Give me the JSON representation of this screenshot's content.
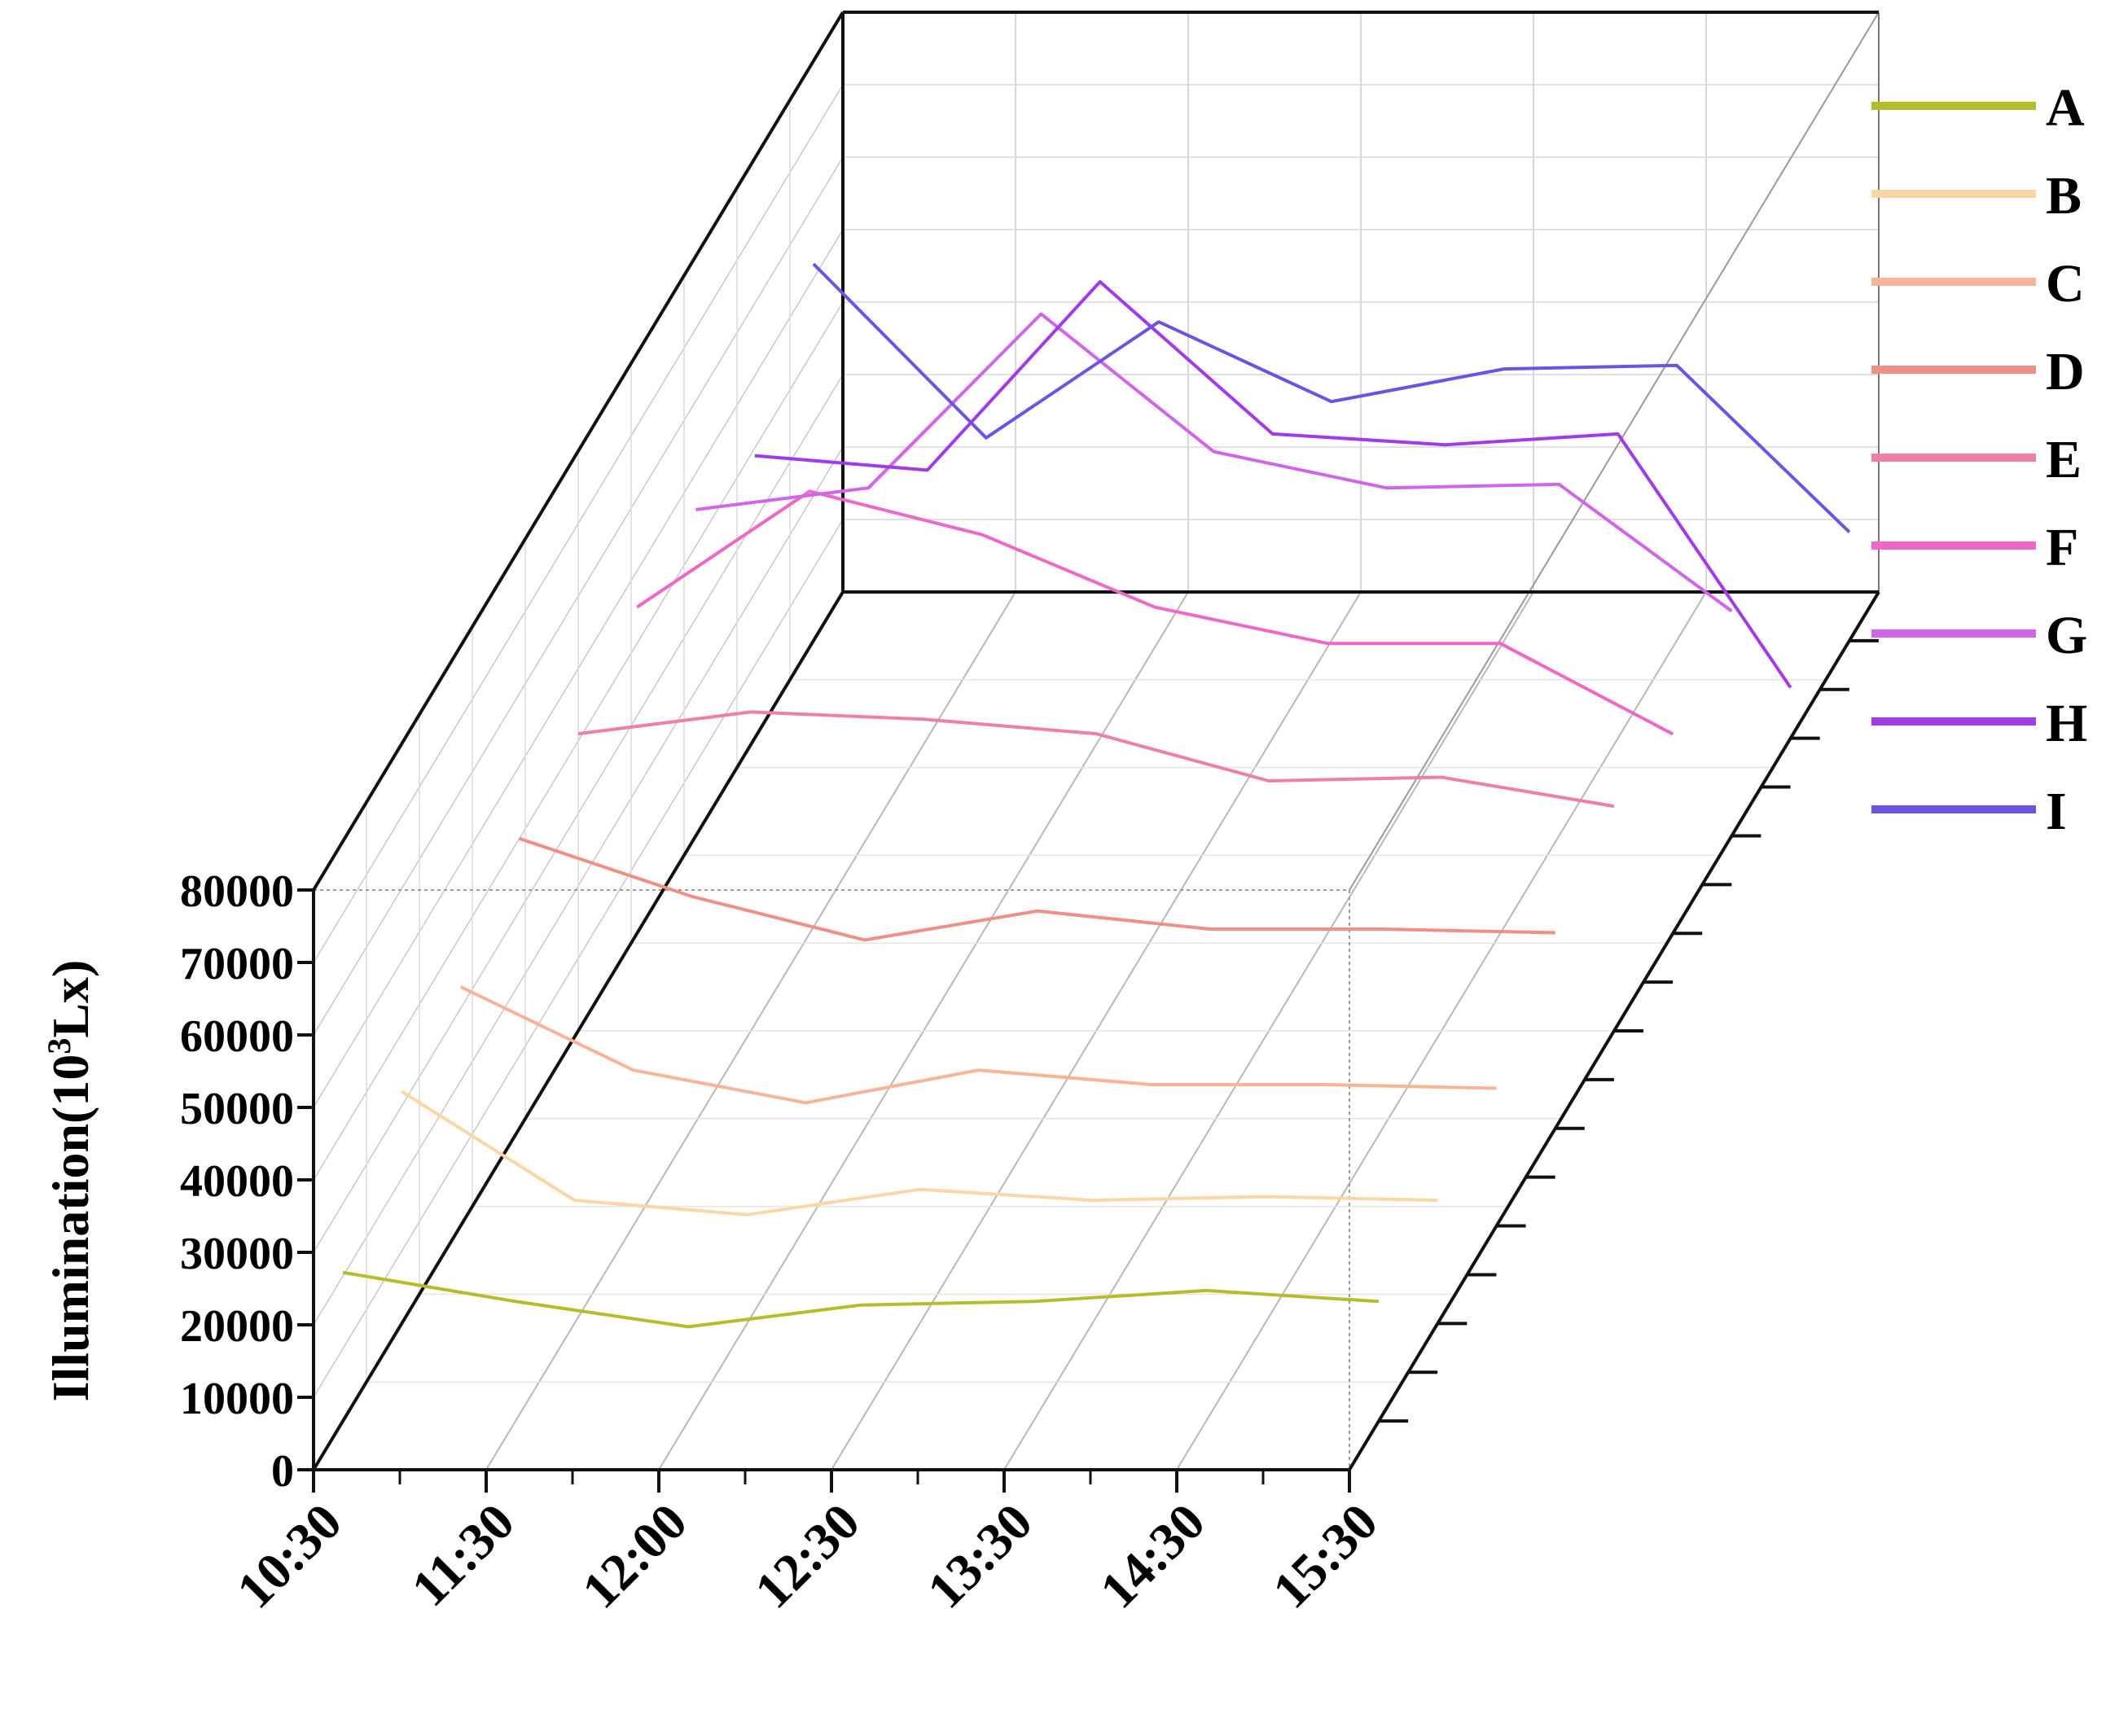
{
  "chart_data": {
    "type": "line",
    "projection": "3d-waterfall",
    "ylabel_prefix": "Illumination(10",
    "ylabel_sup": "3",
    "ylabel_suffix": "Lx)",
    "ylim": [
      0,
      80000
    ],
    "yticks": [
      "0",
      "10000",
      "20000",
      "30000",
      "40000",
      "50000",
      "60000",
      "70000",
      "80000"
    ],
    "x_tick_labels": [
      "10:30",
      "11:30",
      "12:00",
      "12:30",
      "13:30",
      "14:30",
      "15:30"
    ],
    "x": [
      0,
      1,
      2,
      3,
      4,
      5,
      6
    ],
    "grid": true,
    "legend_position": "right",
    "series": [
      {
        "name": "A",
        "color": "#b5bd2a",
        "values": [
          20500,
          16500,
          13000,
          16000,
          16500,
          18000,
          16500
        ]
      },
      {
        "name": "B",
        "color": "#fcd6a4",
        "values": [
          32000,
          17000,
          15000,
          18500,
          17000,
          17500,
          17000
        ]
      },
      {
        "name": "C",
        "color": "#f8b498",
        "values": [
          33000,
          21500,
          17000,
          21500,
          19500,
          19500,
          19000
        ]
      },
      {
        "name": "D",
        "color": "#ef8f85",
        "values": [
          40000,
          32000,
          26000,
          30000,
          27500,
          27500,
          27000
        ]
      },
      {
        "name": "E",
        "color": "#f07fa6",
        "values": [
          41000,
          44000,
          43000,
          41000,
          34500,
          35000,
          31000
        ]
      },
      {
        "name": "F",
        "color": "#ef67c7",
        "values": [
          45000,
          61000,
          55000,
          45000,
          40000,
          40000,
          27500
        ]
      },
      {
        "name": "G",
        "color": "#d164e8",
        "values": [
          45000,
          48000,
          72000,
          53000,
          48000,
          48500,
          31000
        ]
      },
      {
        "name": "H",
        "color": "#a33ae8",
        "values": [
          39000,
          37000,
          63000,
          42000,
          40500,
          42000,
          7000
        ]
      },
      {
        "name": "I",
        "color": "#6a55e0",
        "values": [
          52000,
          28000,
          44000,
          33000,
          37500,
          38000,
          15000
        ]
      }
    ]
  }
}
